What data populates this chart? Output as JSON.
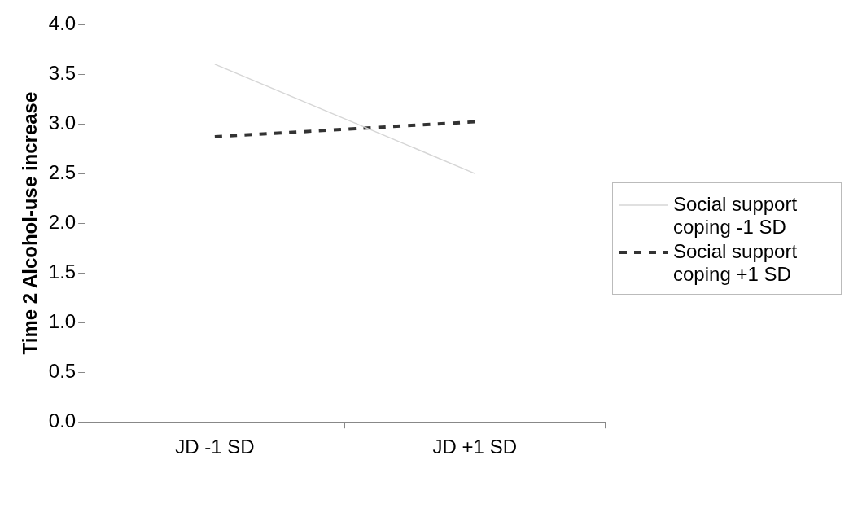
{
  "chart_data": {
    "type": "line",
    "ylabel": "Time 2 Alcohol-use increase",
    "categories": [
      "JD -1 SD",
      "JD +1 SD"
    ],
    "series": [
      {
        "name": "Social support coping -1 SD",
        "color": "#d6d6d6",
        "values": [
          3.6,
          2.5
        ],
        "line_style": "solid"
      },
      {
        "name": "Social support coping +1 SD",
        "color": "#333333",
        "values": [
          2.87,
          3.02
        ],
        "line_style": "dashed"
      }
    ],
    "ylim": [
      0,
      4
    ],
    "yticks": [
      {
        "value": 0,
        "label": "0.0"
      },
      {
        "value": 0.5,
        "label": "0.5"
      },
      {
        "value": 1,
        "label": "1.0"
      },
      {
        "value": 1.5,
        "label": "1.5"
      },
      {
        "value": 2,
        "label": "2.0"
      },
      {
        "value": 2.5,
        "label": "2.5"
      },
      {
        "value": 3,
        "label": "3.0"
      },
      {
        "value": 3.5,
        "label": "3.5"
      },
      {
        "value": 4,
        "label": "4.0"
      }
    ],
    "grid": false,
    "legend": "right",
    "marker": "none"
  }
}
